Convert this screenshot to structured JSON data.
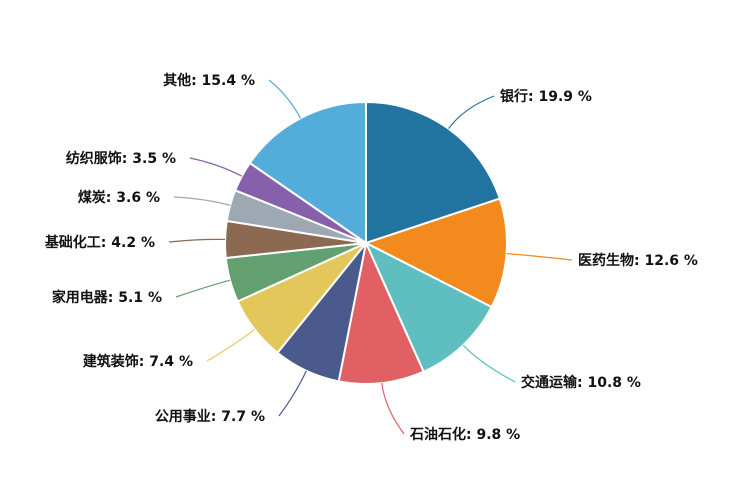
{
  "chart_data": {
    "type": "pie",
    "title": "",
    "categories": [
      "银行",
      "医药生物",
      "交通运输",
      "石油石化",
      "公用事业",
      "建筑装饰",
      "家用电器",
      "基础化工",
      "煤炭",
      "纺织服饰",
      "其他"
    ],
    "values": [
      19.9,
      12.6,
      10.8,
      9.8,
      7.7,
      7.4,
      5.1,
      4.2,
      3.6,
      3.5,
      15.4
    ],
    "unit": "%",
    "colors": [
      "#2274a0",
      "#f38a1e",
      "#5fbfc0",
      "#e06063",
      "#4a5a8c",
      "#e4c75a",
      "#62a070",
      "#8c6a52",
      "#9ea8b2",
      "#8660aa",
      "#54acdb"
    ],
    "labels": [
      "银行: 19.9 %",
      "医药生物: 12.6 %",
      "交通运输: 10.8 %",
      "石油石化: 9.8 %",
      "公用事业: 7.7 %",
      "建筑装饰: 7.4 %",
      "家用电器: 5.1 %",
      "基础化工: 4.2 %",
      "煤炭: 3.6 %",
      "纺织服饰: 3.5 %",
      "其他: 15.4 %"
    ],
    "start_angle_deg": 0,
    "direction": "clockwise",
    "legend": "none",
    "center": [
      366,
      243
    ],
    "radius": 141
  }
}
